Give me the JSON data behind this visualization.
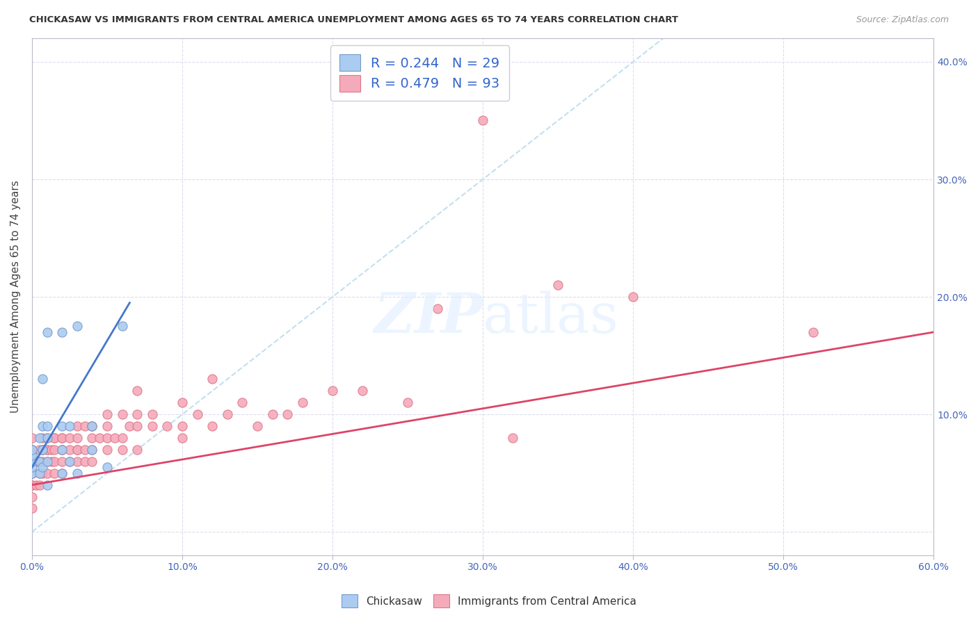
{
  "title": "CHICKASAW VS IMMIGRANTS FROM CENTRAL AMERICA UNEMPLOYMENT AMONG AGES 65 TO 74 YEARS CORRELATION CHART",
  "source": "Source: ZipAtlas.com",
  "ylabel": "Unemployment Among Ages 65 to 74 years",
  "xlim": [
    0.0,
    0.6
  ],
  "ylim": [
    -0.02,
    0.42
  ],
  "xticks": [
    0.0,
    0.1,
    0.2,
    0.3,
    0.4,
    0.5,
    0.6
  ],
  "xticklabels": [
    "0.0%",
    "10.0%",
    "20.0%",
    "30.0%",
    "40.0%",
    "50.0%",
    "60.0%"
  ],
  "yticks": [
    0.0,
    0.1,
    0.2,
    0.3,
    0.4
  ],
  "yticklabels": [
    "",
    "10.0%",
    "20.0%",
    "30.0%",
    "40.0%"
  ],
  "chickasaw_color": "#aaccf0",
  "chickasaw_edge": "#7799cc",
  "central_america_color": "#f5aabb",
  "central_america_edge": "#dd7788",
  "trend_blue": "#4477cc",
  "trend_pink": "#dd4466",
  "diag_color": "#bbddee",
  "R_chickasaw": 0.244,
  "N_chickasaw": 29,
  "R_central": 0.479,
  "N_central": 93,
  "chickasaw_x": [
    0.0,
    0.0,
    0.0,
    0.0,
    0.0,
    0.005,
    0.005,
    0.005,
    0.007,
    0.007,
    0.007,
    0.007,
    0.01,
    0.01,
    0.01,
    0.01,
    0.01,
    0.02,
    0.02,
    0.02,
    0.02,
    0.025,
    0.025,
    0.03,
    0.03,
    0.04,
    0.04,
    0.05,
    0.06
  ],
  "chickasaw_y": [
    0.05,
    0.055,
    0.06,
    0.065,
    0.07,
    0.05,
    0.06,
    0.08,
    0.055,
    0.07,
    0.09,
    0.13,
    0.04,
    0.06,
    0.08,
    0.09,
    0.17,
    0.05,
    0.07,
    0.09,
    0.17,
    0.06,
    0.09,
    0.05,
    0.175,
    0.07,
    0.09,
    0.055,
    0.175
  ],
  "central_x": [
    0.0,
    0.0,
    0.0,
    0.0,
    0.0,
    0.0,
    0.0,
    0.0,
    0.0,
    0.0,
    0.003,
    0.003,
    0.005,
    0.005,
    0.005,
    0.005,
    0.007,
    0.007,
    0.007,
    0.007,
    0.007,
    0.01,
    0.01,
    0.01,
    0.01,
    0.01,
    0.013,
    0.013,
    0.015,
    0.015,
    0.015,
    0.015,
    0.015,
    0.02,
    0.02,
    0.02,
    0.02,
    0.02,
    0.02,
    0.025,
    0.025,
    0.025,
    0.03,
    0.03,
    0.03,
    0.03,
    0.03,
    0.035,
    0.035,
    0.035,
    0.04,
    0.04,
    0.04,
    0.04,
    0.04,
    0.045,
    0.05,
    0.05,
    0.05,
    0.05,
    0.055,
    0.06,
    0.06,
    0.06,
    0.065,
    0.07,
    0.07,
    0.07,
    0.07,
    0.08,
    0.08,
    0.09,
    0.1,
    0.1,
    0.1,
    0.11,
    0.12,
    0.12,
    0.13,
    0.14,
    0.15,
    0.16,
    0.17,
    0.18,
    0.2,
    0.22,
    0.25,
    0.27,
    0.3,
    0.32,
    0.35,
    0.4,
    0.52
  ],
  "central_y": [
    0.02,
    0.03,
    0.04,
    0.04,
    0.05,
    0.06,
    0.06,
    0.07,
    0.07,
    0.08,
    0.04,
    0.06,
    0.04,
    0.05,
    0.06,
    0.07,
    0.05,
    0.06,
    0.07,
    0.07,
    0.08,
    0.05,
    0.06,
    0.07,
    0.07,
    0.08,
    0.06,
    0.07,
    0.05,
    0.06,
    0.07,
    0.08,
    0.08,
    0.05,
    0.06,
    0.07,
    0.07,
    0.08,
    0.08,
    0.06,
    0.07,
    0.08,
    0.06,
    0.07,
    0.07,
    0.08,
    0.09,
    0.06,
    0.07,
    0.09,
    0.06,
    0.07,
    0.08,
    0.09,
    0.09,
    0.08,
    0.07,
    0.08,
    0.09,
    0.1,
    0.08,
    0.07,
    0.08,
    0.1,
    0.09,
    0.07,
    0.09,
    0.1,
    0.12,
    0.09,
    0.1,
    0.09,
    0.08,
    0.09,
    0.11,
    0.1,
    0.09,
    0.13,
    0.1,
    0.11,
    0.09,
    0.1,
    0.1,
    0.11,
    0.12,
    0.12,
    0.11,
    0.19,
    0.35,
    0.08,
    0.21,
    0.2,
    0.17
  ],
  "blue_trend_x0": 0.0,
  "blue_trend_y0": 0.055,
  "blue_trend_x1": 0.065,
  "blue_trend_y1": 0.195,
  "pink_trend_x0": 0.0,
  "pink_trend_y0": 0.04,
  "pink_trend_x1": 0.6,
  "pink_trend_y1": 0.17
}
